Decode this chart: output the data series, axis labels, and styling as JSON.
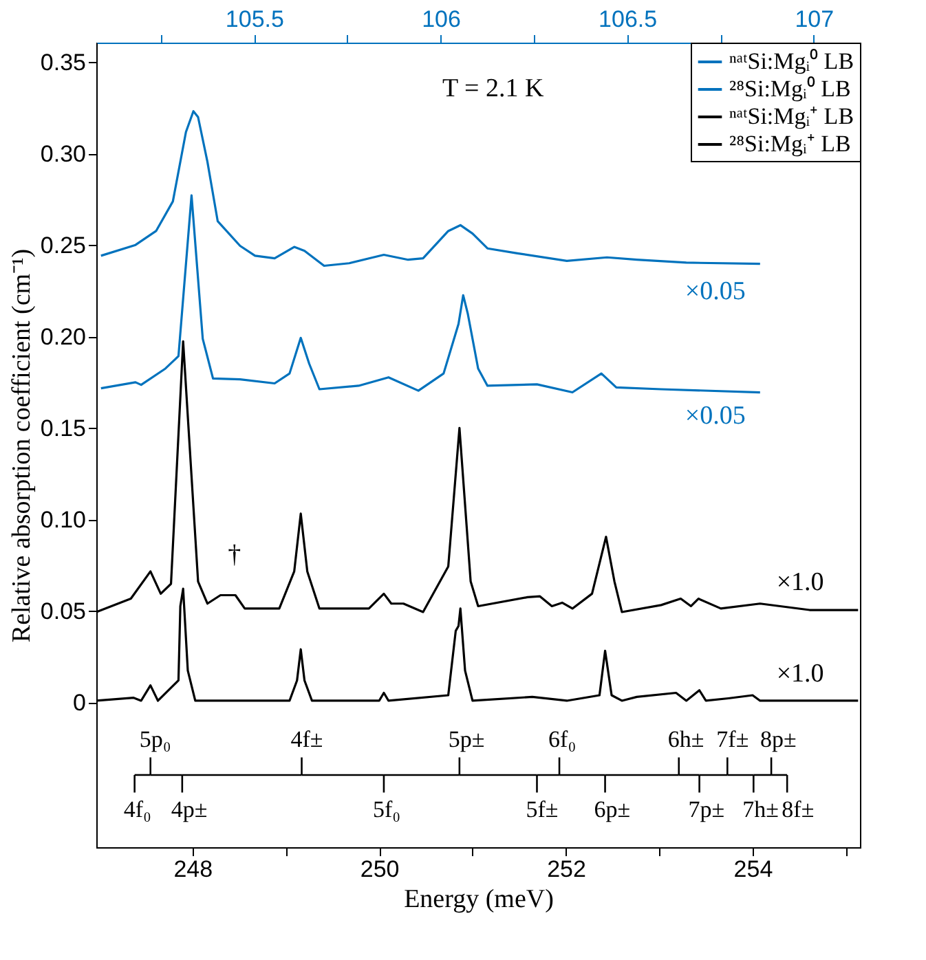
{
  "chart_data": {
    "type": "line",
    "xlabel": "Energy (meV)",
    "ylabel": "Relative absorption coefficient (cm⁻¹)",
    "xlim": [
      246.97,
      255.15
    ],
    "xticks": [
      248,
      {
        "value": 249,
        "label": null
      },
      250,
      {
        "value": 251,
        "label": null
      },
      252,
      {
        "value": 253,
        "label": null
      },
      254,
      {
        "value": 255,
        "label": null
      }
    ],
    "x2lim": [
      105.077,
      107.124
    ],
    "x2ticks": [
      {
        "value": 105.25,
        "label": null
      },
      105.5,
      {
        "value": 105.75,
        "label": null
      },
      106,
      {
        "value": 106.25,
        "label": null
      },
      106.5,
      {
        "value": 106.75,
        "label": null
      },
      107
    ],
    "ylim": [
      -0.0791,
      0.3608
    ],
    "yticks": [
      0,
      0.05,
      {
        "value": 0.1,
        "label": "0.10"
      },
      0.15,
      {
        "value": 0.2,
        "label": "0.20"
      },
      0.25,
      {
        "value": 0.3,
        "label": "0.30"
      },
      0.35
    ],
    "grid": false,
    "legend": "top right",
    "line_style": "solid",
    "series": [
      {
        "name": "ⁿᵃᵗSi:Mgᵢ⁰ LB",
        "color": "#0072bd",
        "x": [
          247.02,
          247.39,
          247.61,
          247.79,
          247.93,
          248.01,
          248.06,
          248.16,
          248.27,
          248.51,
          248.67,
          248.88,
          249.09,
          249.2,
          249.41,
          249.68,
          250.05,
          250.31,
          250.47,
          250.74,
          250.87,
          251.0,
          251.16,
          251.48,
          252.01,
          252.44,
          252.76,
          253.29,
          254.08
        ],
        "values": [
          0.2443,
          0.2502,
          0.2578,
          0.274,
          0.3119,
          0.3233,
          0.3201,
          0.2957,
          0.2632,
          0.2497,
          0.2443,
          0.2429,
          0.2491,
          0.247,
          0.2388,
          0.2402,
          0.2448,
          0.2421,
          0.2429,
          0.2578,
          0.261,
          0.2564,
          0.2483,
          0.2456,
          0.2415,
          0.2434,
          0.2421,
          0.2405,
          0.2399
        ]
      },
      {
        "name": "²⁸Si:Mgᵢ⁰ LB",
        "color": "#0072bd",
        "x": [
          247.02,
          247.39,
          247.45,
          247.71,
          247.85,
          247.99,
          248.11,
          248.22,
          248.51,
          248.88,
          249.04,
          249.16,
          249.25,
          249.36,
          249.78,
          250.1,
          250.42,
          250.69,
          250.85,
          250.9,
          250.95,
          251.06,
          251.16,
          251.69,
          252.07,
          252.38,
          252.54,
          253.02,
          254.08
        ],
        "values": [
          0.1718,
          0.1751,
          0.1737,
          0.1826,
          0.1894,
          0.2773,
          0.1989,
          0.1772,
          0.1767,
          0.1745,
          0.1799,
          0.1994,
          0.1853,
          0.1713,
          0.1732,
          0.1778,
          0.1705,
          0.1799,
          0.207,
          0.2227,
          0.2124,
          0.1826,
          0.1732,
          0.174,
          0.1696,
          0.1799,
          0.1723,
          0.1713,
          0.1696
        ]
      },
      {
        "name": "ⁿᵃᵗSi:Mgᵢ⁺ LB",
        "color": "#000000",
        "x": [
          246.97,
          247.34,
          247.55,
          247.66,
          247.77,
          247.9,
          248.06,
          248.16,
          248.3,
          248.46,
          248.56,
          248.93,
          249.09,
          249.16,
          249.23,
          249.36,
          249.89,
          250.05,
          250.13,
          250.26,
          250.47,
          250.74,
          250.86,
          250.98,
          251.06,
          251.59,
          251.72,
          251.85,
          251.96,
          252.07,
          252.28,
          252.43,
          252.52,
          252.6,
          253.02,
          253.23,
          253.34,
          253.42,
          253.66,
          254.08,
          254.61,
          255.13
        ],
        "values": [
          0.0495,
          0.0568,
          0.0717,
          0.0595,
          0.0649,
          0.1975,
          0.0662,
          0.0541,
          0.0587,
          0.0587,
          0.0514,
          0.0514,
          0.0717,
          0.1033,
          0.0717,
          0.0514,
          0.0514,
          0.0595,
          0.0541,
          0.0541,
          0.0495,
          0.0744,
          0.1501,
          0.0662,
          0.0527,
          0.0576,
          0.0581,
          0.0527,
          0.0546,
          0.0514,
          0.0595,
          0.0906,
          0.0662,
          0.0495,
          0.0533,
          0.0568,
          0.0527,
          0.0568,
          0.0514,
          0.0541,
          0.0506,
          0.0506
        ]
      },
      {
        "name": "²⁸Si:Mgᵢ⁺ LB",
        "color": "#000000",
        "x": [
          246.97,
          247.37,
          247.45,
          247.55,
          247.63,
          247.85,
          247.87,
          247.9,
          247.95,
          248.03,
          249.04,
          249.12,
          249.16,
          249.2,
          249.28,
          250.0,
          250.05,
          250.1,
          250.74,
          250.82,
          250.85,
          250.87,
          250.92,
          251.0,
          251.64,
          252.01,
          252.36,
          252.42,
          252.49,
          252.6,
          252.76,
          253.18,
          253.29,
          253.43,
          253.5,
          253.74,
          254.0,
          254.08,
          255.13
        ],
        "values": [
          0.001,
          0.0026,
          0.001,
          0.0094,
          0.001,
          0.0121,
          0.0527,
          0.0622,
          0.0175,
          0.001,
          0.001,
          0.0121,
          0.0291,
          0.0121,
          0.001,
          0.001,
          0.0053,
          0.001,
          0.004,
          0.0392,
          0.0419,
          0.0514,
          0.0175,
          0.001,
          0.0031,
          0.001,
          0.004,
          0.0283,
          0.004,
          0.001,
          0.0031,
          0.0053,
          0.001,
          0.0067,
          0.001,
          0.0023,
          0.004,
          0.001,
          0.001
        ]
      }
    ],
    "annotations": [
      "T = 2.1 K",
      "×0.05",
      "×0.05",
      "×1.0",
      "×1.0",
      "†",
      "5p₀",
      "4f±",
      "5p±",
      "6f₀",
      "6h±",
      "7f±",
      "8p±",
      "4f₀",
      "4p±",
      "5f₀",
      "5f±",
      "6p±",
      "7p±",
      "7h±",
      "8f±"
    ]
  }
}
